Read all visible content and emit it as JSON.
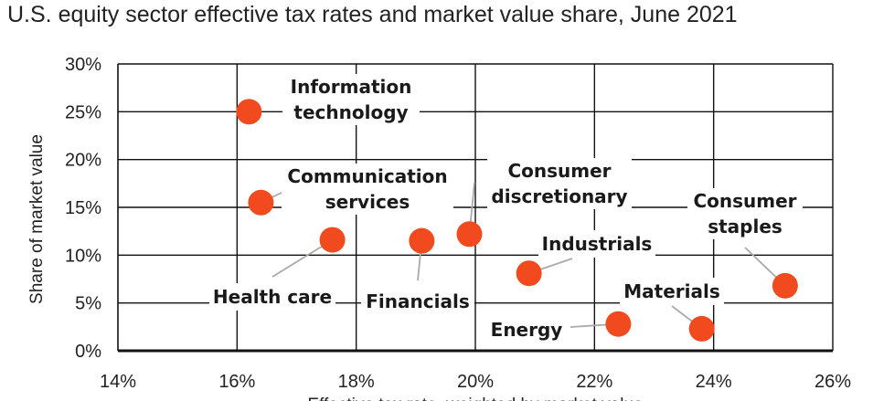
{
  "chart_data": {
    "type": "scatter",
    "title": "U.S. equity sector effective tax rates and market value share, June 2021",
    "xlabel": "Effective tax rate, weighted by market value",
    "ylabel": "Share of market value",
    "xlim": [
      14,
      26
    ],
    "ylim": [
      0,
      30
    ],
    "x_ticks": [
      14,
      16,
      18,
      20,
      22,
      24,
      26
    ],
    "y_ticks": [
      0,
      5,
      10,
      15,
      20,
      25,
      30
    ],
    "x_tick_labels": [
      "14%",
      "16%",
      "18%",
      "20%",
      "22%",
      "24%",
      "26%"
    ],
    "y_tick_labels": [
      "0%",
      "5%",
      "10%",
      "15%",
      "20%",
      "25%",
      "30%"
    ],
    "grid": true,
    "point_color": "#f04a1e",
    "points": [
      {
        "name": "Information technology",
        "lines": [
          "Information",
          "technology"
        ],
        "x": 16.2,
        "y": 25.0
      },
      {
        "name": "Communication services",
        "lines": [
          "Communication",
          "services"
        ],
        "x": 16.4,
        "y": 15.5
      },
      {
        "name": "Health care",
        "lines": [
          "Health care"
        ],
        "x": 17.6,
        "y": 11.6
      },
      {
        "name": "Financials",
        "lines": [
          "Financials"
        ],
        "x": 19.1,
        "y": 11.5
      },
      {
        "name": "Consumer discretionary",
        "lines": [
          "Consumer",
          "discretionary"
        ],
        "x": 19.9,
        "y": 12.2
      },
      {
        "name": "Industrials",
        "lines": [
          "Industrials"
        ],
        "x": 20.9,
        "y": 8.1
      },
      {
        "name": "Consumer staples",
        "lines": [
          "Consumer",
          "staples"
        ],
        "x": 25.2,
        "y": 6.8
      },
      {
        "name": "Materials",
        "lines": [
          "Materials"
        ],
        "x": 23.8,
        "y": 2.3
      },
      {
        "name": "Energy",
        "lines": [
          "Energy"
        ],
        "x": 22.4,
        "y": 2.8
      }
    ]
  }
}
